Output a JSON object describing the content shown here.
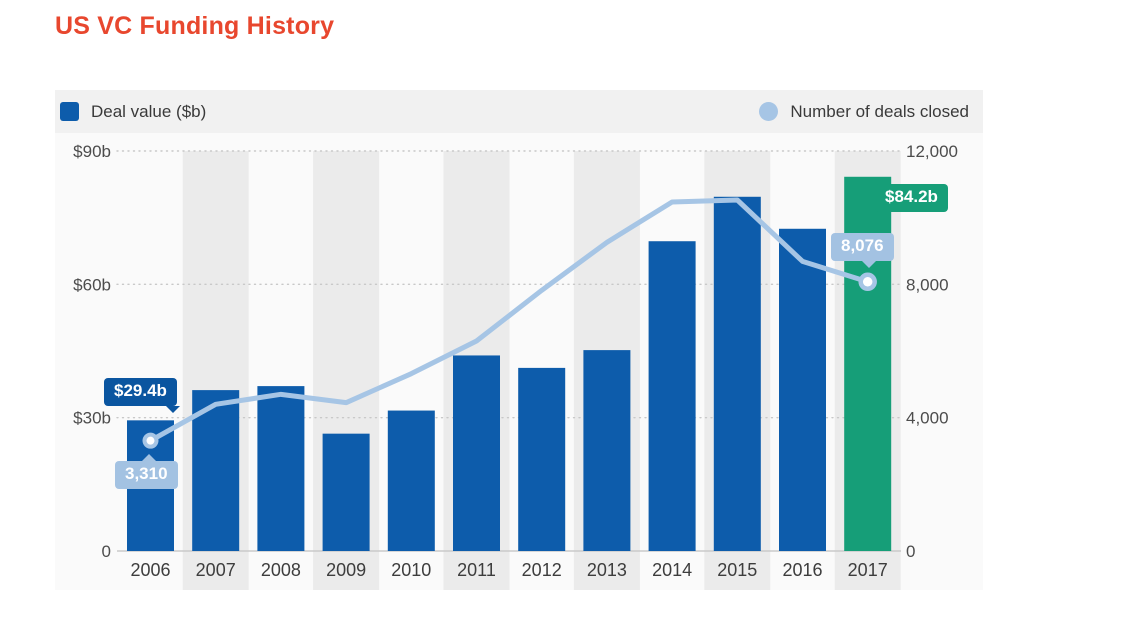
{
  "page": {
    "title": "US VC Funding History"
  },
  "legend": [
    {
      "label": "Deal value ($b)",
      "swatch": "square",
      "color": "#0d5cab"
    },
    {
      "label": "Number of deals closed",
      "swatch": "circle",
      "color": "#a6c5e5"
    }
  ],
  "annotations": {
    "bar_2006": "$29.4b",
    "line_2006": "3,310",
    "bar_2017": "$84.2b",
    "line_2017": "8,076"
  },
  "chart_data": {
    "type": "bar",
    "title": "US VC Funding History",
    "categories": [
      "2006",
      "2007",
      "2008",
      "2009",
      "2010",
      "2011",
      "2012",
      "2013",
      "2014",
      "2015",
      "2016",
      "2017"
    ],
    "series": [
      {
        "name": "Deal value ($b)",
        "type": "bar",
        "axis": "left",
        "values": [
          29.4,
          36.2,
          37.1,
          26.4,
          31.6,
          44.0,
          41.2,
          45.2,
          69.7,
          79.7,
          72.5,
          84.2
        ],
        "bar_color": "#0d5cab",
        "highlight_index": 11,
        "highlight_color": "#169e78"
      },
      {
        "name": "Number of deals closed",
        "type": "line",
        "axis": "right",
        "values": [
          3310,
          4400,
          4700,
          4450,
          5320,
          6300,
          7820,
          9260,
          10470,
          10530,
          8690,
          8076
        ],
        "line_color": "#a6c5e5",
        "marker_indices": [
          0,
          11
        ]
      }
    ],
    "left_axis": {
      "ticks": [
        "$90b",
        "$60b",
        "$30b",
        "0"
      ],
      "tick_values": [
        90,
        60,
        30,
        0
      ],
      "max": 90
    },
    "right_axis": {
      "ticks": [
        "12,000",
        "8,000",
        "4,000",
        "0"
      ],
      "tick_values": [
        12000,
        8000,
        4000,
        0
      ],
      "max": 12000
    },
    "grid": "dotted-horizontal",
    "band_years_shaded": [
      "2007",
      "2009",
      "2011",
      "2013",
      "2015",
      "2017"
    ],
    "legend_position": "top"
  },
  "colors": {
    "title": "#e8472e",
    "bar_blue": "#0d5cab",
    "highlight_green": "#169e78",
    "line_blue": "#a6c5e5",
    "tooltip_dark": "#0a55a0",
    "tooltip_light": "#a3c2e2",
    "band_gray": "#ebebeb",
    "legend_strip": "#f1f1f1",
    "widget_bg": "#fafafa",
    "axis_text": "#4c4c4c"
  }
}
